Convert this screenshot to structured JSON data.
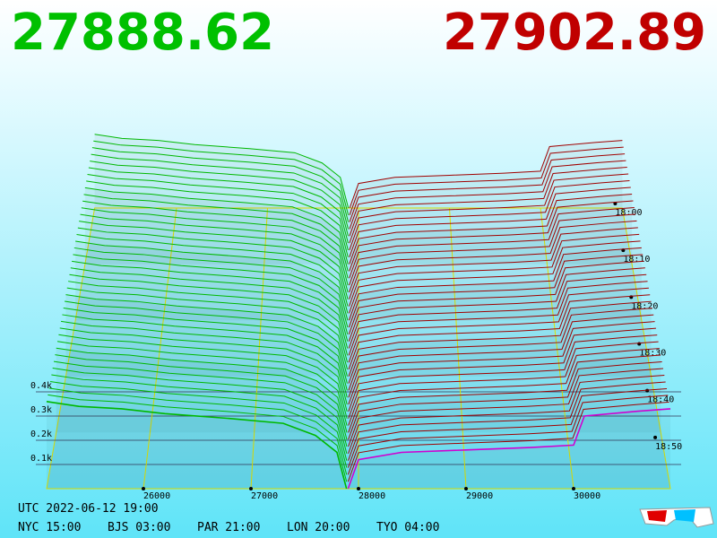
{
  "header": {
    "bid": "27888.62",
    "ask": "27902.89"
  },
  "chart_data": {
    "type": "depth3d",
    "series": [
      {
        "color": "#00b800",
        "x": [
          25100,
          25400,
          25800,
          26200,
          26800,
          27300,
          27600,
          27800,
          27888.62
        ],
        "values": [
          0.36,
          0.34,
          0.33,
          0.31,
          0.29,
          0.27,
          0.22,
          0.15,
          0
        ]
      },
      {
        "color": "#a00000",
        "x": [
          27902.89,
          28000,
          28400,
          29000,
          29600,
          30000,
          30100,
          30600,
          30900
        ],
        "values": [
          0,
          0.12,
          0.15,
          0.16,
          0.17,
          0.18,
          0.3,
          0.32,
          0.33
        ]
      }
    ],
    "highlight_color": "#d000d0",
    "xlim": [
      25100,
      30900
    ],
    "xticks": [
      26000,
      27000,
      28000,
      29000,
      30000
    ],
    "zlim": [
      0,
      1
    ],
    "zticks": [
      {
        "value": 0.1,
        "label": "0.1k"
      },
      {
        "value": 0.2,
        "label": "0.2k"
      },
      {
        "value": 0.3,
        "label": "0.3k"
      },
      {
        "value": 0.4,
        "label": "0.4k"
      }
    ],
    "time_ticks": [
      "18:00",
      "18:10",
      "18:20",
      "18:30",
      "18:40",
      "18:50"
    ]
  },
  "footer": {
    "utc": "UTC 2022-06-12 19:00",
    "zones": [
      "NYC 15:00",
      "BJS 03:00",
      "PAR 21:00",
      "LON 20:00",
      "TYO 04:00"
    ]
  }
}
